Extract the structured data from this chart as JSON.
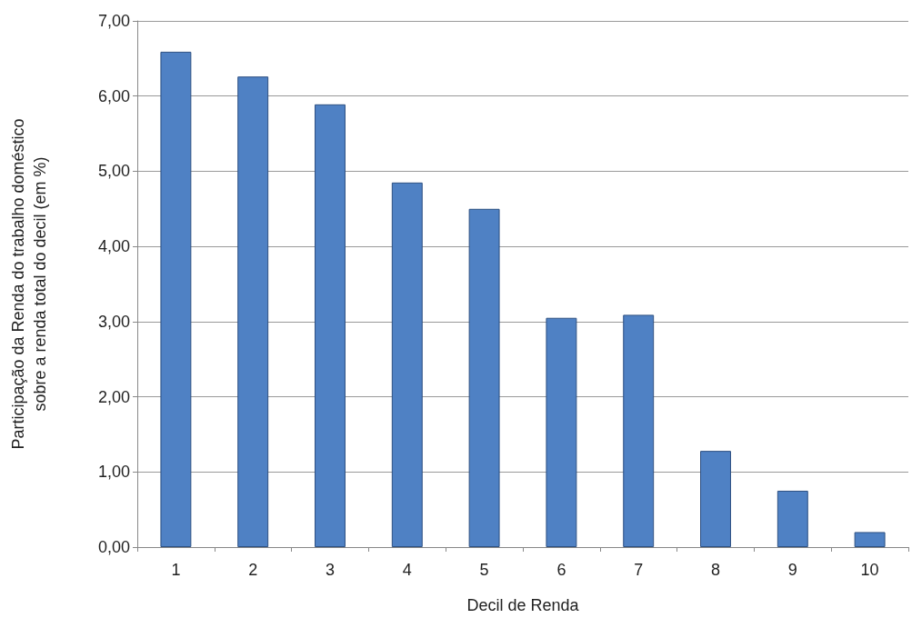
{
  "chart_data": {
    "type": "bar",
    "xlabel": "Decil de Renda",
    "ylabel": "Participação da Renda do trabalho doméstico\nsobre a renda total do decil (em %)",
    "categories": [
      "1",
      "2",
      "3",
      "4",
      "5",
      "6",
      "7",
      "8",
      "9",
      "10"
    ],
    "values": [
      6.59,
      6.26,
      5.89,
      4.85,
      4.5,
      3.05,
      3.09,
      1.28,
      0.75,
      0.2
    ],
    "color": "#4f81c4",
    "ylim": [
      0,
      7
    ],
    "yticks": [
      {
        "value": 0,
        "label": "0,00"
      },
      {
        "value": 1,
        "label": "1,00"
      },
      {
        "value": 2,
        "label": "2,00"
      },
      {
        "value": 3,
        "label": "3,00"
      },
      {
        "value": 4,
        "label": "4,00"
      },
      {
        "value": 5,
        "label": "5,00"
      },
      {
        "value": 6,
        "label": "6,00"
      },
      {
        "value": 7,
        "label": "7,00"
      }
    ],
    "grid": "y"
  }
}
